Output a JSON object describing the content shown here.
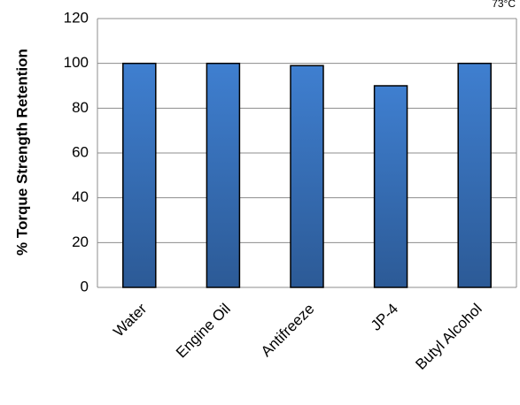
{
  "chart_data": {
    "type": "bar",
    "categories": [
      "Water",
      "Engine Oil",
      "Antifreeze",
      "JP-4",
      "Butyl Alcohol"
    ],
    "values": [
      100,
      100,
      99,
      90,
      100
    ],
    "title": "",
    "xlabel": "",
    "ylabel": "% Torque Strength Retention",
    "ylim": [
      0,
      120
    ],
    "yticks": [
      0,
      20,
      40,
      60,
      80,
      100,
      120
    ],
    "annotation": "73°C",
    "bar_color": "#3a6fb8",
    "bar_edge_color": "#000000",
    "grid": true
  }
}
